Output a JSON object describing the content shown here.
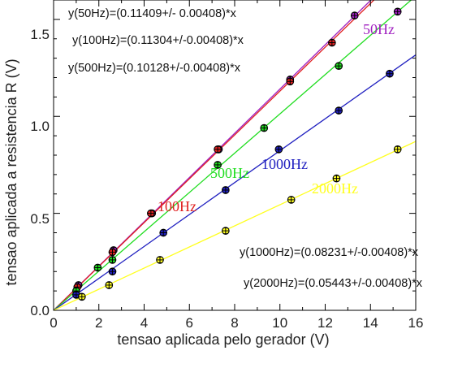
{
  "chart_data": {
    "type": "scatter",
    "xlabel": "tensao aplicada pelo gerador (V)",
    "ylabel": "tensao aplicada a resistencia R (V)",
    "xlim": [
      0,
      16
    ],
    "ylim": [
      0,
      1.6
    ],
    "xticks": [
      0,
      2,
      4,
      6,
      8,
      10,
      12,
      14,
      16
    ],
    "yticks": [
      0.0,
      0.5,
      1.0,
      1.5
    ],
    "xtick_labels": [
      "0",
      "2",
      "4",
      "6",
      "8",
      "10",
      "12",
      "14",
      "16"
    ],
    "ytick_labels": [
      "0.0",
      "0.5",
      "1.0",
      "1.5"
    ],
    "grid": false,
    "y_error": 0.015,
    "series": [
      {
        "name": "50Hz",
        "color": "#a020c0",
        "slope": 0.11409,
        "points": [
          [
            1.1,
            0.13
          ],
          [
            2.65,
            0.31
          ],
          [
            4.35,
            0.5
          ],
          [
            7.3,
            0.83
          ],
          [
            10.45,
            1.19
          ],
          [
            13.3,
            1.52
          ],
          [
            15.2,
            1.54
          ]
        ]
      },
      {
        "name": "100Hz",
        "color": "#e02020",
        "slope": 0.11304,
        "points": [
          [
            1.05,
            0.12
          ],
          [
            2.6,
            0.3
          ],
          [
            4.3,
            0.5
          ],
          [
            7.25,
            0.83
          ],
          [
            10.45,
            1.18
          ],
          [
            12.3,
            1.38
          ]
        ]
      },
      {
        "name": "500Hz",
        "color": "#20dd20",
        "slope": 0.10128,
        "points": [
          [
            1.0,
            0.1
          ],
          [
            1.95,
            0.22
          ],
          [
            2.6,
            0.26
          ],
          [
            7.25,
            0.75
          ],
          [
            9.3,
            0.94
          ],
          [
            12.6,
            1.26
          ]
        ]
      },
      {
        "name": "1000Hz",
        "color": "#2020c0",
        "slope": 0.08231,
        "points": [
          [
            1.0,
            0.08
          ],
          [
            2.6,
            0.2
          ],
          [
            4.85,
            0.4
          ],
          [
            7.6,
            0.62
          ],
          [
            9.95,
            0.83
          ],
          [
            12.6,
            1.03
          ],
          [
            14.85,
            1.22
          ]
        ]
      },
      {
        "name": "2000Hz",
        "color": "#ffff20",
        "slope": 0.05443,
        "points": [
          [
            1.25,
            0.07
          ],
          [
            2.45,
            0.13
          ],
          [
            4.7,
            0.26
          ],
          [
            7.6,
            0.41
          ],
          [
            10.5,
            0.57
          ],
          [
            12.5,
            0.68
          ],
          [
            15.2,
            0.83
          ]
        ]
      }
    ],
    "annotations": [
      "y(50Hz)=(0.11409+/- 0.00408)*x",
      "y(100Hz)=(0.11304+/-0.00408)*x",
      "y(500Hz)=(0.10128+/-0.00408)*x",
      "y(1000Hz)=(0.08231+/-0.00408)*x",
      "y(2000Hz)=(0.05443+/-0.00408)*x"
    ],
    "series_labels": [
      "50Hz",
      "100Hz",
      "500Hz",
      "1000Hz",
      "2000Hz"
    ]
  }
}
